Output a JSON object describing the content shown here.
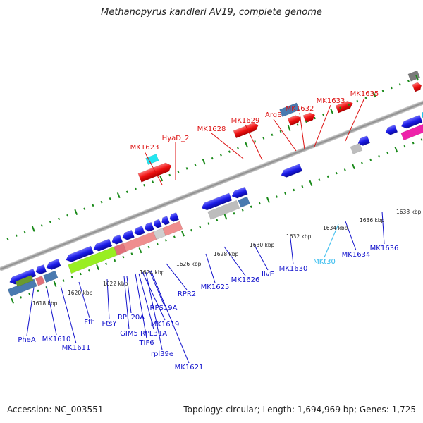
{
  "title": "Methanopyrus kandleri AV19, complete genome",
  "footer": {
    "accession": "Accession: NC_003551",
    "summary": "Topology: circular; Length: 1,694,969 bp; Genes: 1,725"
  },
  "colors": {
    "forward_label": "#dd1111",
    "reverse_label": "#1111cc",
    "trna_label": "#33bbee",
    "blue_gene": "#1a1ae6",
    "red_gene": "#ee1111",
    "backbone": "#8a8a8a",
    "tick": "#1a8a1a"
  },
  "kbp_ticks": [
    "1618 kbp",
    "1620 kbp",
    "1622 kbp",
    "1624 kbp",
    "1626 kbp",
    "1628 kbp",
    "1630 kbp",
    "1632 kbp",
    "1634 kbp",
    "1636 kbp",
    "1638 kbp"
  ],
  "forward_labels": [
    "MK1623",
    "HyaD_2",
    "MK1628",
    "MK1629",
    "ArgB",
    "MK1632",
    "MK1633",
    "MK1635"
  ],
  "reverse_labels": [
    "PheA",
    "MK1610",
    "MK1611",
    "Ffh",
    "FtsY",
    "GIM5",
    "RPL20A",
    "TIF6",
    "RPL31A",
    "MK1619",
    "rpl39e",
    "RPS19A",
    "MK1621",
    "RPR2",
    "MK1625",
    "MK1626",
    "IlvE",
    "MK1630",
    "MKt30",
    "MK1634",
    "MK1636"
  ]
}
